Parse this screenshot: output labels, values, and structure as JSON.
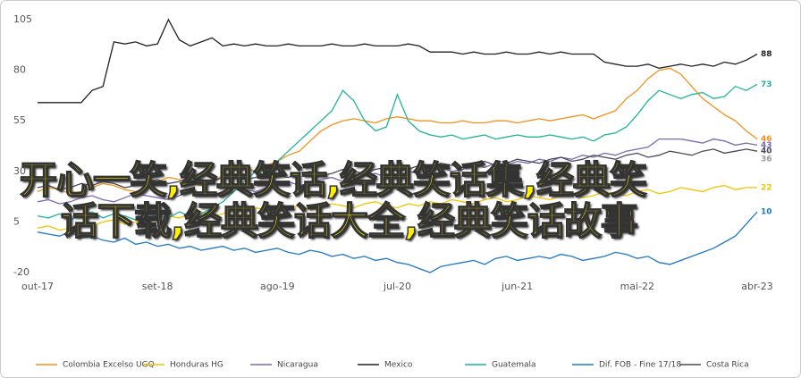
{
  "chart_data": {
    "type": "line",
    "overlay_text": [
      "开心一笑,经典笑话,经典笑话集,经典笑",
      "话下载,经典笑话大全,经典笑话故事"
    ],
    "categories": [
      "out-17",
      null,
      null,
      null,
      null,
      null,
      null,
      null,
      null,
      null,
      null,
      "set-18",
      null,
      null,
      null,
      null,
      null,
      null,
      null,
      null,
      null,
      null,
      "ago-19",
      null,
      null,
      null,
      null,
      null,
      null,
      null,
      null,
      null,
      null,
      "jul-20",
      null,
      null,
      null,
      null,
      null,
      null,
      null,
      null,
      null,
      null,
      "jun-21",
      null,
      null,
      null,
      null,
      null,
      null,
      null,
      null,
      null,
      null,
      "mai-22",
      null,
      null,
      null,
      null,
      null,
      null,
      null,
      null,
      null,
      null,
      "abr-23"
    ],
    "ylim": [
      -20,
      105
    ],
    "yticks": [
      -20,
      5,
      30,
      55,
      80,
      105
    ],
    "grid": false,
    "series": [
      {
        "name": "Colombia Excelso UGQ",
        "color": "#f0921e",
        "values": [
          20,
          22,
          21,
          19,
          20,
          22,
          24,
          23,
          21,
          20,
          22,
          25,
          27,
          26,
          24,
          23,
          25,
          28,
          30,
          32,
          30,
          33,
          35,
          38,
          40,
          45,
          50,
          53,
          55,
          56,
          55,
          54,
          56,
          57,
          56,
          55,
          55,
          54,
          54,
          55,
          54,
          54,
          55,
          55,
          54,
          55,
          56,
          55,
          56,
          57,
          58,
          56,
          58,
          60,
          66,
          70,
          76,
          80,
          81,
          78,
          72,
          66,
          62,
          58,
          55,
          50,
          46
        ]
      },
      {
        "name": "Honduras HG",
        "color": "#f2c400",
        "values": [
          2,
          3,
          1,
          2,
          4,
          3,
          5,
          6,
          4,
          5,
          7,
          6,
          8,
          7,
          9,
          10,
          8,
          9,
          11,
          10,
          12,
          11,
          10,
          12,
          13,
          11,
          12,
          14,
          13,
          12,
          14,
          15,
          13,
          12,
          14,
          13,
          15,
          14,
          16,
          15,
          14,
          16,
          17,
          15,
          16,
          18,
          17,
          16,
          18,
          19,
          17,
          18,
          20,
          19,
          18,
          20,
          21,
          19,
          20,
          22,
          21,
          20,
          22,
          23,
          21,
          22,
          22
        ]
      },
      {
        "name": "Nicaragua",
        "color": "#7b68b0",
        "values": [
          15,
          16,
          14,
          15,
          17,
          18,
          16,
          15,
          17,
          19,
          18,
          17,
          16,
          18,
          20,
          19,
          18,
          20,
          22,
          21,
          20,
          22,
          24,
          25,
          23,
          24,
          26,
          27,
          25,
          26,
          28,
          29,
          27,
          28,
          30,
          29,
          31,
          32,
          30,
          31,
          33,
          32,
          34,
          33,
          35,
          34,
          36,
          35,
          37,
          36,
          38,
          37,
          39,
          38,
          40,
          41,
          42,
          46,
          46,
          46,
          45,
          44,
          46,
          45,
          43,
          44,
          43
        ]
      },
      {
        "name": "Mexico",
        "color": "#222222",
        "values": [
          64,
          64,
          64,
          64,
          64,
          70,
          72,
          94,
          93,
          94,
          92,
          93,
          105,
          95,
          92,
          94,
          96,
          92,
          93,
          92,
          93,
          92,
          92,
          93,
          92,
          92,
          92,
          93,
          92,
          92,
          93,
          92,
          92,
          92,
          93,
          92,
          89,
          89,
          89,
          88,
          89,
          88,
          88,
          89,
          88,
          88,
          89,
          88,
          89,
          88,
          88,
          88,
          84,
          83,
          82,
          82,
          83,
          81,
          82,
          83,
          82,
          83,
          82,
          84,
          83,
          85,
          88
        ]
      },
      {
        "name": "Guatemala",
        "color": "#1fb29a",
        "values": [
          8,
          7,
          9,
          6,
          8,
          10,
          7,
          9,
          8,
          6,
          9,
          8,
          7,
          10,
          8,
          9,
          12,
          15,
          20,
          25,
          30,
          28,
          35,
          40,
          45,
          50,
          55,
          60,
          70,
          65,
          55,
          50,
          52,
          68,
          55,
          50,
          48,
          47,
          48,
          46,
          47,
          48,
          46,
          47,
          48,
          47,
          47,
          48,
          47,
          46,
          47,
          45,
          48,
          49,
          52,
          58,
          65,
          70,
          68,
          66,
          68,
          69,
          66,
          67,
          72,
          70,
          73
        ]
      },
      {
        "name": "Dif. FOB - Fine 17/18",
        "color": "#1f78c8",
        "values": [
          0,
          -1,
          -2,
          0,
          -3,
          -2,
          -4,
          -5,
          -3,
          -6,
          -5,
          -7,
          -6,
          -8,
          -7,
          -9,
          -8,
          -7,
          -9,
          -8,
          -10,
          -9,
          -8,
          -10,
          -11,
          -9,
          -10,
          -12,
          -11,
          -13,
          -12,
          -14,
          -13,
          -15,
          -16,
          -18,
          -20,
          -17,
          -16,
          -15,
          -14,
          -16,
          -13,
          -12,
          -14,
          -13,
          -12,
          -13,
          -11,
          -12,
          -14,
          -13,
          -12,
          -10,
          -11,
          -13,
          -12,
          -15,
          -16,
          -14,
          -12,
          -10,
          -8,
          -5,
          -2,
          4,
          10
        ]
      },
      {
        "name": "Costa Rica",
        "color": "#4a4a5a",
        "values": [
          22,
          23,
          21,
          22,
          24,
          23,
          25,
          24,
          22,
          23,
          25,
          26,
          24,
          25,
          27,
          26,
          25,
          27,
          28,
          26,
          27,
          29,
          28,
          27,
          29,
          30,
          28,
          29,
          31,
          30,
          29,
          31,
          32,
          30,
          31,
          33,
          32,
          34,
          33,
          32,
          34,
          35,
          33,
          34,
          36,
          35,
          34,
          36,
          37,
          35,
          36,
          38,
          37,
          36,
          38,
          39,
          37,
          38,
          40,
          39,
          38,
          40,
          41,
          39,
          40,
          41,
          40
        ]
      }
    ],
    "extra_end_labels": [
      {
        "value": 36,
        "color": "#999999"
      }
    ]
  }
}
